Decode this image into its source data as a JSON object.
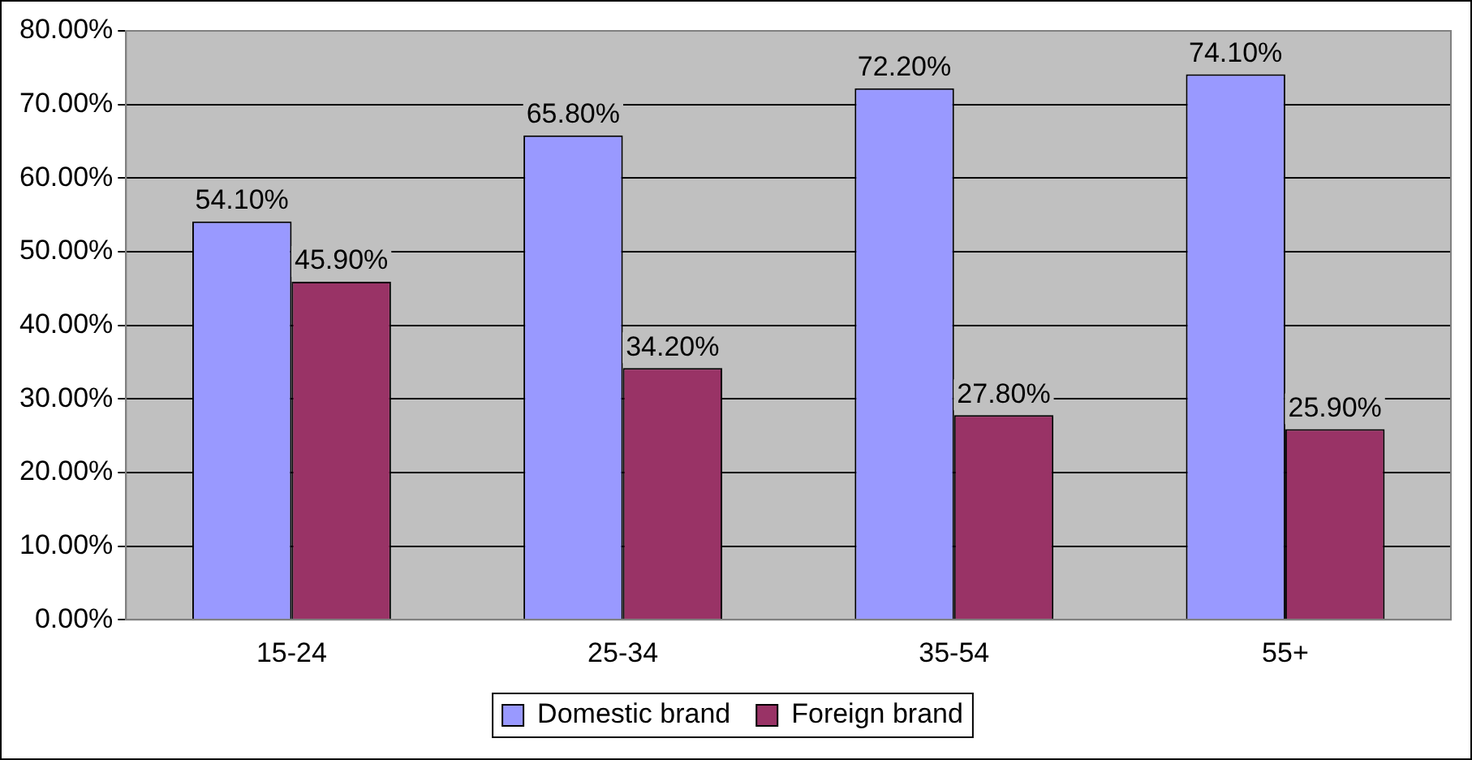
{
  "chart_data": {
    "type": "bar",
    "categories": [
      "15-24",
      "25-34",
      "35-54",
      "55+"
    ],
    "series": [
      {
        "name": "Domestic brand",
        "color": "#9999ff",
        "values": [
          54.1,
          65.8,
          72.2,
          74.1
        ],
        "value_labels": [
          "54.10%",
          "65.80%",
          "72.20%",
          "74.10%"
        ]
      },
      {
        "name": "Foreign brand",
        "color": "#993366",
        "values": [
          45.9,
          34.2,
          27.8,
          25.9
        ],
        "value_labels": [
          "45.90%",
          "34.20%",
          "27.80%",
          "25.90%"
        ]
      }
    ],
    "ylim": [
      0,
      80
    ],
    "yticks": [
      {
        "value": 0,
        "label": "0.00%"
      },
      {
        "value": 10,
        "label": "10.00%"
      },
      {
        "value": 20,
        "label": "20.00%"
      },
      {
        "value": 30,
        "label": "30.00%"
      },
      {
        "value": 40,
        "label": "40.00%"
      },
      {
        "value": 50,
        "label": "50.00%"
      },
      {
        "value": 60,
        "label": "60.00%"
      },
      {
        "value": 70,
        "label": "70.00%"
      },
      {
        "value": 80,
        "label": "80.00%"
      }
    ],
    "grid": "y",
    "legend": "bottom"
  }
}
